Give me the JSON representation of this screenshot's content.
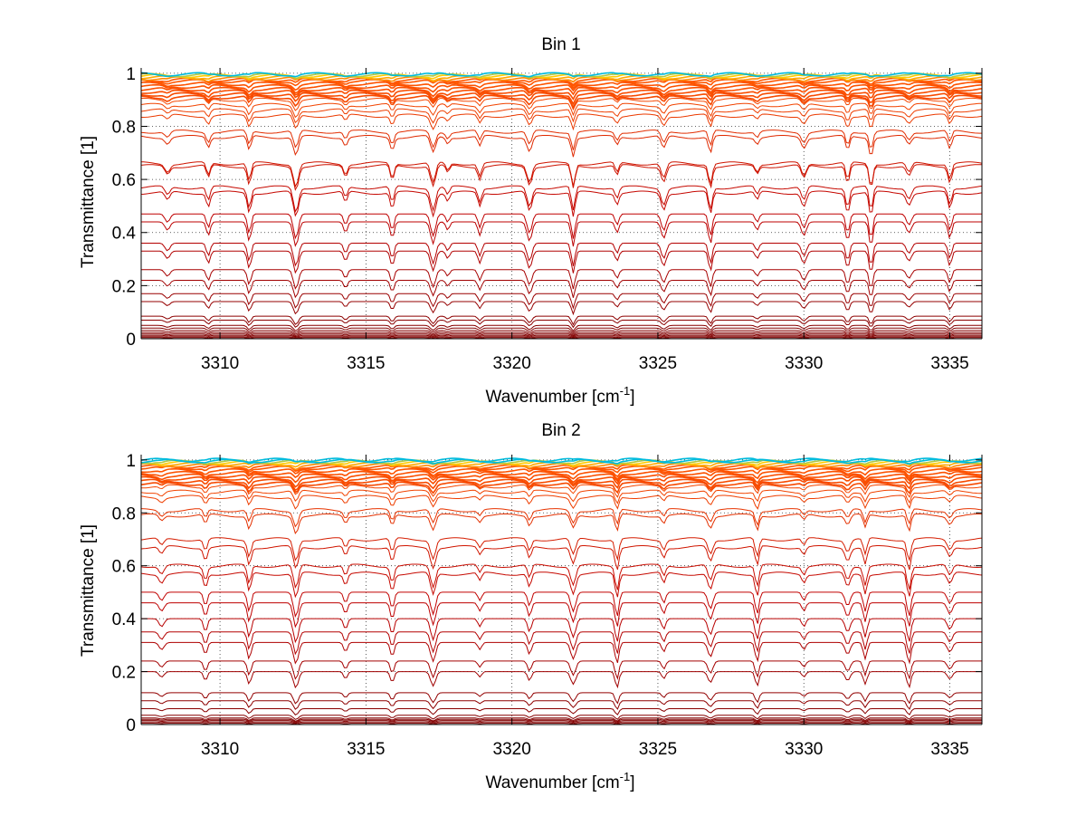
{
  "figure": {
    "background": "#ffffff"
  },
  "chart_data": [
    {
      "type": "line",
      "title": "Bin 1",
      "xlabel": "Wavenumber [cm",
      "xlabel_sup": "-1",
      "xlabel_suffix": "]",
      "ylabel": "Transmittance [1]",
      "xlim": [
        3307.3,
        3336.1
      ],
      "ylim": [
        0,
        1.02
      ],
      "xticks": [
        3310,
        3315,
        3320,
        3325,
        3330,
        3335
      ],
      "xticklabels": [
        "3310",
        "3315",
        "3320",
        "3325",
        "3330",
        "3335"
      ],
      "yticks": [
        0,
        0.2,
        0.4,
        0.6,
        0.8,
        1
      ],
      "yticklabels": [
        "0",
        "0.2",
        "0.4",
        "0.6",
        "0.8",
        "1"
      ],
      "grid": "dotted",
      "series_baselines": [
        0.0,
        0.004,
        0.008,
        0.013,
        0.018,
        0.024,
        0.031,
        0.04,
        0.05,
        0.07,
        0.085,
        0.14,
        0.17,
        0.22,
        0.26,
        0.33,
        0.36,
        0.44,
        0.47,
        0.55,
        0.57,
        0.65,
        0.66,
        0.76,
        0.78,
        0.84,
        0.86,
        0.88,
        0.9,
        0.91,
        0.92,
        0.93,
        0.94,
        0.95,
        0.96,
        0.97,
        0.975,
        0.98,
        0.985,
        0.99,
        0.993,
        0.996
      ],
      "absorption_lines": [
        3308.2,
        3309.6,
        3311.0,
        3312.6,
        3314.3,
        3315.9,
        3317.3,
        3317.8,
        3318.9,
        3320.6,
        3322.1,
        3323.6,
        3325.2,
        3326.8,
        3328.4,
        3330.0,
        3331.5,
        3332.3,
        3333.6,
        3335.0
      ],
      "series_colors": [
        "#7f0000",
        "#990000",
        "#b00000",
        "#c00000",
        "#cc1100",
        "#e63300",
        "#ff5500",
        "#ff8800",
        "#ffcc00",
        "#00bbdd",
        "#0055ff"
      ]
    },
    {
      "type": "line",
      "title": "Bin 2",
      "xlabel": "Wavenumber [cm",
      "xlabel_sup": "-1",
      "xlabel_suffix": "]",
      "ylabel": "Transmittance [1]",
      "xlim": [
        3307.3,
        3336.1
      ],
      "ylim": [
        0,
        1.02
      ],
      "xticks": [
        3310,
        3315,
        3320,
        3325,
        3330,
        3335
      ],
      "xticklabels": [
        "3310",
        "3315",
        "3320",
        "3325",
        "3330",
        "3335"
      ],
      "yticks": [
        0,
        0.2,
        0.4,
        0.6,
        0.8,
        1
      ],
      "yticklabels": [
        "0",
        "0.2",
        "0.4",
        "0.6",
        "0.8",
        "1"
      ],
      "grid": "dotted",
      "series_baselines": [
        0.0,
        0.005,
        0.01,
        0.015,
        0.02,
        0.025,
        0.035,
        0.06,
        0.09,
        0.12,
        0.2,
        0.24,
        0.31,
        0.35,
        0.4,
        0.46,
        0.5,
        0.57,
        0.6,
        0.67,
        0.7,
        0.79,
        0.81,
        0.86,
        0.88,
        0.9,
        0.91,
        0.92,
        0.93,
        0.94,
        0.95,
        0.96,
        0.97,
        0.975,
        0.98,
        0.985,
        0.99,
        0.993,
        0.996,
        1.0
      ],
      "absorption_lines": [
        3308.0,
        3309.5,
        3311.0,
        3312.6,
        3314.3,
        3315.9,
        3317.3,
        3318.9,
        3320.6,
        3322.1,
        3323.6,
        3325.2,
        3326.8,
        3328.4,
        3330.0,
        3331.5,
        3332.1,
        3333.6,
        3335.0
      ],
      "series_colors": [
        "#7f0000",
        "#990000",
        "#b00000",
        "#c00000",
        "#cc1100",
        "#e63300",
        "#ff5500",
        "#ff8800",
        "#ffcc00",
        "#00bbdd",
        "#0055ff"
      ]
    }
  ]
}
